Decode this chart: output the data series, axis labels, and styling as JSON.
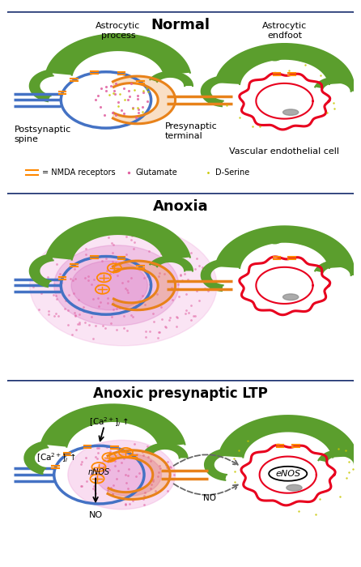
{
  "panel_titles": [
    "Normal",
    "Anoxia",
    "Anoxic presynaptic LTP"
  ],
  "colors": {
    "blue": "#4472C4",
    "green": "#5B9E2D",
    "orange": "#E8821A",
    "red": "#E8001E",
    "pink_dot": "#E060A0",
    "yellow_dot": "#C8C800",
    "pink_glow1": "#F0A0D8",
    "pink_glow2": "#D060B8",
    "border": "#1F3472",
    "background": "#FFFFFF"
  },
  "legend": {
    "nmda": "NMDA receptors",
    "glutamate": "Glutamate",
    "dserine": "D-Serine"
  },
  "panel_rects": {
    "p1": [
      0.02,
      0.675,
      0.96,
      0.305
    ],
    "p2": [
      0.02,
      0.345,
      0.96,
      0.315
    ],
    "p3": [
      0.02,
      0.015,
      0.96,
      0.315
    ]
  }
}
